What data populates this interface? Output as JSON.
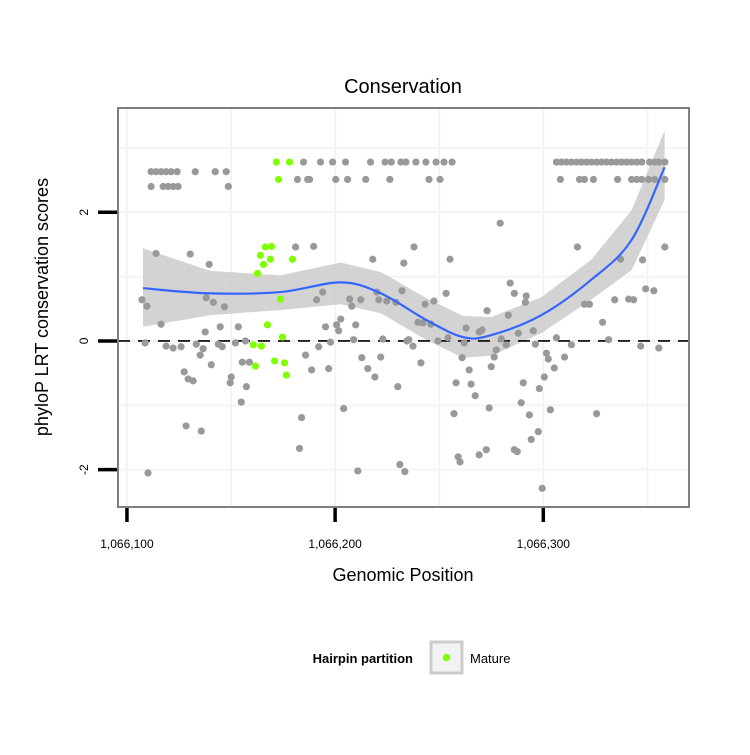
{
  "chart_data": {
    "type": "scatter",
    "title": "Conservation",
    "xlabel": "Genomic Position",
    "ylabel": "phyloP LRT conservation scores",
    "xlim": [
      1066095.7,
      1066370
    ],
    "ylim": [
      -2.58,
      3.62
    ],
    "xticks": [
      1066100,
      1066200,
      1066300
    ],
    "xtick_labels": [
      "1,066,100",
      "1,066,200",
      "1,066,300"
    ],
    "yticks": [
      -2,
      0,
      2
    ],
    "ytick_labels": [
      "-2",
      "0",
      "2"
    ],
    "reference_line_y": 0,
    "grid": true,
    "legend": {
      "title": "Hairpin partition",
      "placement": "bottom",
      "entries": [
        {
          "label": "Mature",
          "color": "#7fff00"
        }
      ]
    },
    "colors": {
      "other": "#999999",
      "mature": "#7fff00",
      "smooth": "#3366ff",
      "ribbon": "#c8c8c8"
    },
    "smooth": [
      {
        "x": 1066107.7,
        "y": 0.82,
        "lo": 0.22,
        "hi": 1.44
      },
      {
        "x": 1066140,
        "y": 0.74,
        "lo": 0.4,
        "hi": 1.09
      },
      {
        "x": 1066173.7,
        "y": 0.76,
        "lo": 0.48,
        "hi": 1.02
      },
      {
        "x": 1066202.7,
        "y": 0.91,
        "lo": 0.57,
        "hi": 1.22
      },
      {
        "x": 1066222,
        "y": 0.74,
        "lo": 0.43,
        "hi": 1.07
      },
      {
        "x": 1066243.6,
        "y": 0.33,
        "lo": 0.02,
        "hi": 0.67
      },
      {
        "x": 1066261.4,
        "y": 0.06,
        "lo": -0.26,
        "hi": 0.39
      },
      {
        "x": 1066274.9,
        "y": 0.09,
        "lo": -0.23,
        "hi": 0.37
      },
      {
        "x": 1066299,
        "y": 0.4,
        "lo": 0.12,
        "hi": 0.68
      },
      {
        "x": 1066323,
        "y": 0.95,
        "lo": 0.64,
        "hi": 1.26
      },
      {
        "x": 1066342.4,
        "y": 1.57,
        "lo": 1.1,
        "hi": 2.03
      },
      {
        "x": 1066358.3,
        "y": 2.7,
        "lo": 2.19,
        "hi": 3.27
      }
    ],
    "mature_points": [
      [
        1066171.8,
        2.78
      ],
      [
        1066178.1,
        2.78
      ],
      [
        1066172.8,
        2.51
      ],
      [
        1066166.5,
        1.46
      ],
      [
        1066169.4,
        1.47
      ],
      [
        1066164.1,
        1.33
      ],
      [
        1066168.9,
        1.27
      ],
      [
        1066165.6,
        1.19
      ],
      [
        1066179.5,
        1.27
      ],
      [
        1066162.7,
        1.05
      ],
      [
        1066173.7,
        0.65
      ],
      [
        1066167.5,
        0.25
      ],
      [
        1066174.7,
        0.06
      ],
      [
        1066160.7,
        -0.06
      ],
      [
        1066164.6,
        -0.08
      ],
      [
        1066170.9,
        -0.31
      ],
      [
        1066175.7,
        -0.34
      ],
      [
        1066161.7,
        -0.39
      ],
      [
        1066176.6,
        -0.53
      ]
    ],
    "other_points": [
      [
        1066111.6,
        2.63
      ],
      [
        1066114,
        2.63
      ],
      [
        1066116.4,
        2.63
      ],
      [
        1066118.8,
        2.63
      ],
      [
        1066121.2,
        2.63
      ],
      [
        1066124.1,
        2.63
      ],
      [
        1066132.8,
        2.63
      ],
      [
        1066142.4,
        2.63
      ],
      [
        1066147.7,
        2.63
      ],
      [
        1066111.6,
        2.4
      ],
      [
        1066117.4,
        2.4
      ],
      [
        1066119.8,
        2.4
      ],
      [
        1066122.2,
        2.4
      ],
      [
        1066124.6,
        2.4
      ],
      [
        1066148.7,
        2.4
      ],
      [
        1066184.8,
        2.78
      ],
      [
        1066193,
        2.78
      ],
      [
        1066198.8,
        2.78
      ],
      [
        1066205,
        2.78
      ],
      [
        1066217,
        2.78
      ],
      [
        1066224,
        2.78
      ],
      [
        1066227,
        2.78
      ],
      [
        1066231.6,
        2.78
      ],
      [
        1066234,
        2.78
      ],
      [
        1066238.8,
        2.78
      ],
      [
        1066243.6,
        2.78
      ],
      [
        1066248.5,
        2.78
      ],
      [
        1066252.3,
        2.78
      ],
      [
        1066256.2,
        2.78
      ],
      [
        1066306.3,
        2.78
      ],
      [
        1066308.7,
        2.78
      ],
      [
        1066311.1,
        2.78
      ],
      [
        1066313.5,
        2.78
      ],
      [
        1066315.9,
        2.78
      ],
      [
        1066318.3,
        2.78
      ],
      [
        1066320.8,
        2.78
      ],
      [
        1066323.2,
        2.78
      ],
      [
        1066325.6,
        2.78
      ],
      [
        1066328,
        2.78
      ],
      [
        1066330.4,
        2.78
      ],
      [
        1066332.8,
        2.78
      ],
      [
        1066335.2,
        2.78
      ],
      [
        1066337.6,
        2.78
      ],
      [
        1066340,
        2.78
      ],
      [
        1066342.4,
        2.78
      ],
      [
        1066344.9,
        2.78
      ],
      [
        1066347.3,
        2.78
      ],
      [
        1066351.1,
        2.78
      ],
      [
        1066353.5,
        2.78
      ],
      [
        1066355.5,
        2.78
      ],
      [
        1066358.4,
        2.78
      ],
      [
        1066181.9,
        2.51
      ],
      [
        1066186.8,
        2.51
      ],
      [
        1066187.7,
        2.51
      ],
      [
        1066200.3,
        2.51
      ],
      [
        1066206,
        2.51
      ],
      [
        1066214.7,
        2.51
      ],
      [
        1066226.3,
        2.51
      ],
      [
        1066245.1,
        2.51
      ],
      [
        1066250.4,
        2.51
      ],
      [
        1066308.2,
        2.51
      ],
      [
        1066317.4,
        2.51
      ],
      [
        1066319.8,
        2.51
      ],
      [
        1066324.1,
        2.51
      ],
      [
        1066335.7,
        2.51
      ],
      [
        1066342.4,
        2.51
      ],
      [
        1066344.9,
        2.51
      ],
      [
        1066347.3,
        2.51
      ],
      [
        1066350.6,
        2.51
      ],
      [
        1066353.5,
        2.51
      ],
      [
        1066358.4,
        2.51
      ],
      [
        1066114,
        1.36
      ],
      [
        1066130.4,
        1.35
      ],
      [
        1066139.5,
        1.19
      ],
      [
        1066181,
        1.46
      ],
      [
        1066189.7,
        1.47
      ],
      [
        1066218.1,
        1.27
      ],
      [
        1066233,
        1.21
      ],
      [
        1066107.2,
        0.64
      ],
      [
        1066109.6,
        0.54
      ],
      [
        1066138.1,
        0.67
      ],
      [
        1066141.5,
        0.6
      ],
      [
        1066146.8,
        0.53
      ],
      [
        1066116.4,
        0.26
      ],
      [
        1066137.6,
        0.14
      ],
      [
        1066144.8,
        0.22
      ],
      [
        1066153.5,
        0.22
      ],
      [
        1066108.7,
        -0.03
      ],
      [
        1066118.8,
        -0.08
      ],
      [
        1066122.2,
        -0.11
      ],
      [
        1066126,
        -0.09
      ],
      [
        1066133.3,
        -0.05
      ],
      [
        1066136.6,
        -0.12
      ],
      [
        1066135.2,
        -0.22
      ],
      [
        1066143.9,
        -0.05
      ],
      [
        1066145.8,
        -0.09
      ],
      [
        1066152.1,
        -0.03
      ],
      [
        1066156.9,
        0
      ],
      [
        1066155.4,
        -0.33
      ],
      [
        1066158.8,
        -0.33
      ],
      [
        1066127.5,
        -0.48
      ],
      [
        1066129.4,
        -0.59
      ],
      [
        1066131.8,
        -0.62
      ],
      [
        1066140.5,
        -0.37
      ],
      [
        1066150.1,
        -0.56
      ],
      [
        1066149.6,
        -0.65
      ],
      [
        1066157.4,
        -0.71
      ],
      [
        1066154.9,
        -0.95
      ],
      [
        1066185.8,
        -0.22
      ],
      [
        1066188.7,
        -0.45
      ],
      [
        1066196.9,
        -0.43
      ],
      [
        1066192.1,
        -0.09
      ],
      [
        1066195.4,
        0.22
      ],
      [
        1066197.8,
        -0.02
      ],
      [
        1066200.7,
        0.25
      ],
      [
        1066201.7,
        0.16
      ],
      [
        1066202.7,
        0.34
      ],
      [
        1066194,
        0.76
      ],
      [
        1066191.1,
        0.64
      ],
      [
        1066207,
        0.65
      ],
      [
        1066208,
        0.54
      ],
      [
        1066212.3,
        0.64
      ],
      [
        1066209.9,
        0.25
      ],
      [
        1066208.9,
        0.02
      ],
      [
        1066220,
        0.76
      ],
      [
        1066221,
        0.64
      ],
      [
        1066224.8,
        0.62
      ],
      [
        1066229.2,
        0.6
      ],
      [
        1066232.1,
        0.78
      ],
      [
        1066222.9,
        0.03
      ],
      [
        1066234.5,
        0
      ],
      [
        1066212.8,
        -0.26
      ],
      [
        1066221.9,
        -0.25
      ],
      [
        1066215.7,
        -0.43
      ],
      [
        1066219.1,
        -0.56
      ],
      [
        1066230.1,
        -0.71
      ],
      [
        1066128.4,
        -1.32
      ],
      [
        1066135.7,
        -1.4
      ],
      [
        1066183.9,
        -1.19
      ],
      [
        1066204.1,
        -1.05
      ],
      [
        1066182.9,
        -1.67
      ],
      [
        1066110.1,
        -2.05
      ],
      [
        1066210.9,
        -2.02
      ],
      [
        1066231.1,
        -1.92
      ],
      [
        1066233.5,
        -2.03
      ],
      [
        1066279.3,
        1.83
      ],
      [
        1066237.9,
        1.46
      ],
      [
        1066255.2,
        1.27
      ],
      [
        1066316.4,
        1.46
      ],
      [
        1066337.1,
        1.27
      ],
      [
        1066347.7,
        1.26
      ],
      [
        1066358.4,
        1.46
      ],
      [
        1066284.1,
        0.9
      ],
      [
        1066286.1,
        0.74
      ],
      [
        1066291.8,
        0.7
      ],
      [
        1066291.4,
        0.6
      ],
      [
        1066253.3,
        0.74
      ],
      [
        1066247.5,
        0.62
      ],
      [
        1066243.2,
        0.57
      ],
      [
        1066319.8,
        0.57
      ],
      [
        1066322.2,
        0.57
      ],
      [
        1066334.3,
        0.64
      ],
      [
        1066341,
        0.65
      ],
      [
        1066343.4,
        0.64
      ],
      [
        1066349.2,
        0.81
      ],
      [
        1066353.1,
        0.78
      ],
      [
        1066328.5,
        0.29
      ],
      [
        1066273,
        0.47
      ],
      [
        1066283.2,
        0.4
      ],
      [
        1066239.8,
        0.29
      ],
      [
        1066242.2,
        0.28
      ],
      [
        1066246,
        0.26
      ],
      [
        1066262.9,
        0.2
      ],
      [
        1066269.2,
        0.14
      ],
      [
        1066270.6,
        0.17
      ],
      [
        1066288,
        0.12
      ],
      [
        1066295.2,
        0.16
      ],
      [
        1066235.4,
        0.02
      ],
      [
        1066237.4,
        -0.08
      ],
      [
        1066249.4,
        0
      ],
      [
        1066254.2,
        0.05
      ],
      [
        1066262,
        -0.03
      ],
      [
        1066279.8,
        0.03
      ],
      [
        1066282.2,
        -0.06
      ],
      [
        1066296.2,
        -0.05
      ],
      [
        1066306.3,
        0.05
      ],
      [
        1066313.5,
        -0.06
      ],
      [
        1066331.4,
        0.02
      ],
      [
        1066346.8,
        -0.08
      ],
      [
        1066355.5,
        -0.11
      ],
      [
        1066301.5,
        -0.19
      ],
      [
        1066302.4,
        -0.28
      ],
      [
        1066310.2,
        -0.25
      ],
      [
        1066305.3,
        -0.42
      ],
      [
        1066261,
        -0.26
      ],
      [
        1066277.4,
        -0.14
      ],
      [
        1066276.4,
        -0.25
      ],
      [
        1066275,
        -0.4
      ],
      [
        1066241.2,
        -0.34
      ],
      [
        1066264.4,
        -0.45
      ],
      [
        1066300.5,
        -0.56
      ],
      [
        1066298.1,
        -0.74
      ],
      [
        1066290.4,
        -0.65
      ],
      [
        1066258.1,
        -0.65
      ],
      [
        1066265.3,
        -0.67
      ],
      [
        1066267.3,
        -0.85
      ],
      [
        1066289.4,
        -0.96
      ],
      [
        1066293.3,
        -1.15
      ],
      [
        1066325.6,
        -1.13
      ],
      [
        1066303.4,
        -1.07
      ],
      [
        1066274,
        -1.04
      ],
      [
        1066257.1,
        -1.13
      ],
      [
        1066297.6,
        -1.41
      ],
      [
        1066294.2,
        -1.53
      ],
      [
        1066272.6,
        -1.69
      ],
      [
        1066269.2,
        -1.77
      ],
      [
        1066286.1,
        -1.69
      ],
      [
        1066287.5,
        -1.72
      ],
      [
        1066259.1,
        -1.8
      ],
      [
        1066260,
        -1.88
      ],
      [
        1066299.5,
        -2.29
      ]
    ]
  }
}
